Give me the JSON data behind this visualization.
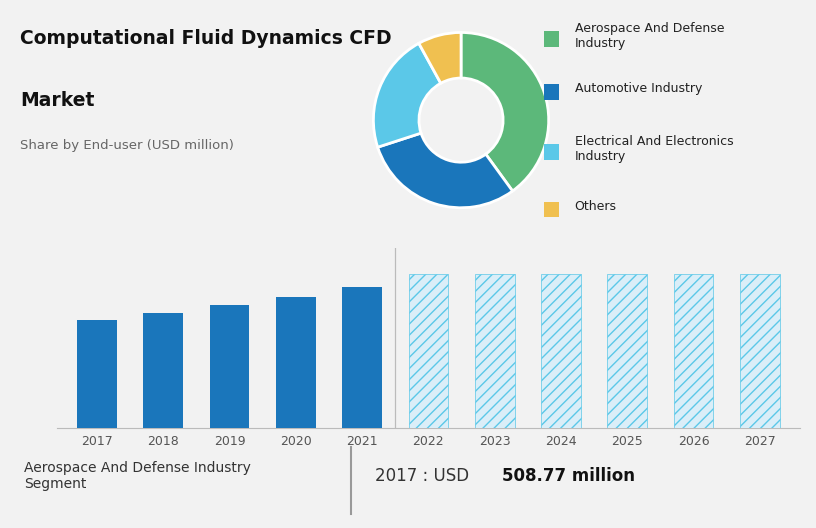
{
  "title_line1": "Computational Fluid Dynamics CFD",
  "title_line2": "Market",
  "subtitle": "Share by End-user (USD million)",
  "bg_top_color": "#cdd8e3",
  "bg_bottom_color": "#f2f2f2",
  "pie_values": [
    40,
    30,
    22,
    8
  ],
  "pie_colors": [
    "#5cb87a",
    "#1a76bb",
    "#5bc8e8",
    "#f0c050"
  ],
  "pie_startangle": 90,
  "legend_labels": [
    "Aerospace And Defense\nIndustry",
    "Automotive Industry",
    "Electrical And Electronics\nIndustry",
    "Others"
  ],
  "legend_colors": [
    "#5cb87a",
    "#1a76bb",
    "#5bc8e8",
    "#f0c050"
  ],
  "bar_years_solid": [
    2017,
    2018,
    2019,
    2020,
    2021
  ],
  "bar_values_solid": [
    509,
    545,
    580,
    620,
    665
  ],
  "bar_years_hatched": [
    2022,
    2023,
    2024,
    2025,
    2026,
    2027
  ],
  "bar_values_hatched": [
    730,
    730,
    730,
    730,
    730,
    730
  ],
  "bar_color_solid": "#1a76bb",
  "bar_color_hatched_edge": "#5bc8e8",
  "bar_color_hatched_face": "#daeef8",
  "bar_hatch": "///",
  "bar_ylim": [
    0,
    850
  ],
  "footer_left": "Aerospace And Defense Industry\nSegment",
  "footer_right_plain": "2017 : USD ",
  "footer_right_bold": "508.77 million"
}
